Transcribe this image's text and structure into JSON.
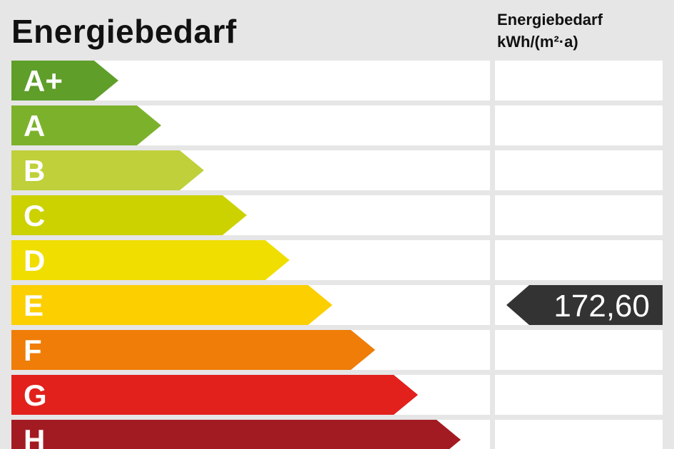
{
  "header": {
    "title": "Energiebedarf",
    "unit_title": "Energiebedarf",
    "unit": "kWh/(m²·a)"
  },
  "chart_data": {
    "type": "bar",
    "title": "Energiebedarf",
    "categories": [
      "A+",
      "A",
      "B",
      "C",
      "D",
      "E",
      "F",
      "G",
      "H"
    ],
    "colors": [
      "#5f9e29",
      "#7cb22b",
      "#bfd03a",
      "#ccd200",
      "#f0de00",
      "#fccf00",
      "#ef7d08",
      "#e2211d",
      "#a31b22"
    ],
    "marker": {
      "category": "E",
      "value": "172,60",
      "color": "#333333"
    }
  }
}
